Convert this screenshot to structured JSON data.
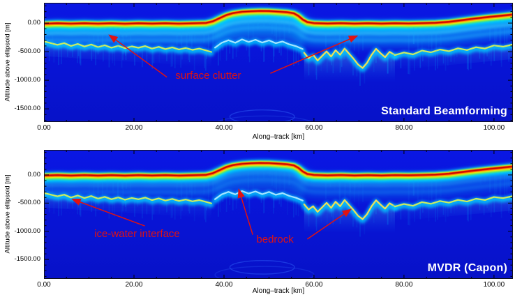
{
  "colors": {
    "annotation": "#e01212",
    "panel_title": "#ffffff",
    "echogram_background": "#0a15dc",
    "axis": "#000000"
  },
  "chart_data": {
    "type": "heatmap",
    "subtype": "radar-echogram",
    "colormap": "jet",
    "annotation_color": "#e01212",
    "profiles": {
      "surface": [
        [
          -0.5,
          -12
        ],
        [
          3,
          -2
        ],
        [
          6,
          -10
        ],
        [
          9,
          -2
        ],
        [
          12,
          -10
        ],
        [
          15,
          -3
        ],
        [
          18,
          -11
        ],
        [
          21,
          -2
        ],
        [
          24,
          -9
        ],
        [
          27,
          -3
        ],
        [
          30,
          -10
        ],
        [
          33,
          -4
        ],
        [
          36,
          2
        ],
        [
          37.5,
          30
        ],
        [
          39,
          85
        ],
        [
          40.5,
          140
        ],
        [
          42,
          175
        ],
        [
          44,
          198
        ],
        [
          46,
          208
        ],
        [
          48,
          214
        ],
        [
          50,
          211
        ],
        [
          52,
          201
        ],
        [
          54,
          190
        ],
        [
          55.5,
          172
        ],
        [
          56.5,
          128
        ],
        [
          57.5,
          62
        ],
        [
          58.5,
          18
        ],
        [
          60,
          0
        ],
        [
          63,
          -7
        ],
        [
          66,
          -1
        ],
        [
          69,
          -9
        ],
        [
          72,
          -3
        ],
        [
          75,
          -9
        ],
        [
          78,
          -2
        ],
        [
          81,
          -6
        ],
        [
          84,
          -1
        ],
        [
          87,
          5
        ],
        [
          90,
          22
        ],
        [
          93,
          52
        ],
        [
          96,
          82
        ],
        [
          99,
          108
        ],
        [
          102,
          132
        ],
        [
          104.5,
          152
        ]
      ],
      "layers": [
        {
          "name": "ice-water interface (left)",
          "color": "#d8f055",
          "fill_depth": 260,
          "fill_opacity": 0.3,
          "points": [
            [
              0,
              -320
            ],
            [
              1.5,
              -350
            ],
            [
              3,
              -380
            ],
            [
              4.5,
              -350
            ],
            [
              6,
              -400
            ],
            [
              7.5,
              -365
            ],
            [
              9,
              -410
            ],
            [
              10.5,
              -375
            ],
            [
              12,
              -420
            ],
            [
              13.5,
              -388
            ],
            [
              15,
              -432
            ],
            [
              16.5,
              -398
            ],
            [
              18,
              -440
            ],
            [
              19.5,
              -408
            ],
            [
              21,
              -432
            ],
            [
              22.5,
              -402
            ],
            [
              24,
              -446
            ],
            [
              25.5,
              -416
            ],
            [
              27,
              -455
            ],
            [
              28.5,
              -425
            ],
            [
              30,
              -462
            ],
            [
              31.5,
              -436
            ],
            [
              33,
              -468
            ],
            [
              34.5,
              -446
            ],
            [
              36,
              -478
            ],
            [
              37.2,
              -505
            ]
          ]
        },
        {
          "name": "internal boundary under dome",
          "color": "#aee8ff",
          "fill_depth": 0,
          "fill_opacity": 0,
          "points": [
            [
              38,
              -430
            ],
            [
              39.5,
              -345
            ],
            [
              41,
              -300
            ],
            [
              42.5,
              -345
            ],
            [
              44,
              -285
            ],
            [
              45.5,
              -330
            ],
            [
              47,
              -292
            ],
            [
              48.5,
              -342
            ],
            [
              50,
              -302
            ],
            [
              51.5,
              -352
            ],
            [
              53,
              -322
            ],
            [
              54.5,
              -372
            ],
            [
              56,
              -405
            ],
            [
              57.5,
              -455
            ]
          ]
        },
        {
          "name": "bedrock ridge",
          "color": "#ffe44a",
          "fill_depth": 480,
          "fill_opacity": 0.5,
          "points": [
            [
              57.8,
              -520
            ],
            [
              58.8,
              -615
            ],
            [
              59.8,
              -555
            ],
            [
              60.8,
              -655
            ],
            [
              61.8,
              -575
            ],
            [
              62.8,
              -495
            ],
            [
              63.8,
              -585
            ],
            [
              64.8,
              -475
            ],
            [
              65.8,
              -555
            ],
            [
              66.8,
              -445
            ],
            [
              67.8,
              -535
            ],
            [
              68.8,
              -625
            ],
            [
              69.8,
              -725
            ],
            [
              70.8,
              -785
            ],
            [
              71.8,
              -695
            ],
            [
              72.8,
              -555
            ],
            [
              73.8,
              -450
            ],
            [
              74.8,
              -528
            ],
            [
              75.8,
              -598
            ],
            [
              76.8,
              -502
            ],
            [
              78,
              -560
            ]
          ]
        },
        {
          "name": "ice-water interface (right)",
          "color": "#d8f055",
          "fill_depth": 260,
          "fill_opacity": 0.35,
          "points": [
            [
              78,
              -560
            ],
            [
              80,
              -515
            ],
            [
              82,
              -548
            ],
            [
              84,
              -482
            ],
            [
              86,
              -512
            ],
            [
              88,
              -462
            ],
            [
              90,
              -492
            ],
            [
              92,
              -442
            ],
            [
              94,
              -472
            ],
            [
              96,
              -422
            ],
            [
              98,
              -445
            ],
            [
              100,
              -392
            ],
            [
              102,
              -412
            ],
            [
              104.5,
              -370
            ]
          ]
        }
      ]
    },
    "panels": [
      {
        "id": "standard-beamforming",
        "title": "Standard Beamforming",
        "xlabel": "Along–track [km]",
        "ylabel": "Altitude above ellipsoid [m]",
        "xlim": [
          0,
          104.2
        ],
        "ylim": [
          355,
          -1731
        ],
        "clutter": 1.0,
        "xticks": [
          0,
          20,
          40,
          60,
          80,
          100
        ],
        "xtick_labels": [
          "0.00",
          "20.00",
          "40.00",
          "60.00",
          "80.00",
          "100.00"
        ],
        "yticks": [
          0,
          -500,
          -1000,
          -1500
        ],
        "ytick_labels": [
          "0.00",
          "-500.00",
          "-1000.00",
          "-1500.00"
        ],
        "annotations": [
          {
            "text": "surface clutter",
            "at": [
              29.2,
              -830
            ],
            "arrows": [
              {
                "from": [
                  27.3,
                  -945
                ],
                "to": [
                  14.5,
                  -210
                ]
              },
              {
                "from": [
                  50.3,
                  -880
                ],
                "to": [
                  69.6,
                  -225
                ]
              }
            ]
          }
        ]
      },
      {
        "id": "mvdr-capon",
        "title": "MVDR (Capon)",
        "xlabel": "Along–track [km]",
        "ylabel": "Altitude above ellipsoid [m]",
        "xlim": [
          0,
          104.2
        ],
        "ylim": [
          445,
          -1845
        ],
        "clutter": 0.4,
        "xticks": [
          0,
          20,
          40,
          60,
          80,
          100
        ],
        "xtick_labels": [
          "0.00",
          "20.00",
          "40.00",
          "60.00",
          "80.00",
          "100.00"
        ],
        "yticks": [
          0,
          -500,
          -1000,
          -1500
        ],
        "ytick_labels": [
          "0.00",
          "-500.00",
          "-1000.00",
          "-1500.00"
        ],
        "annotations": [
          {
            "text": "ice-water interface",
            "at": [
              11.2,
              -955
            ],
            "arrows": [
              {
                "from": [
                  22.4,
                  -905
                ],
                "to": [
                  6.3,
                  -430
                ]
              }
            ]
          },
          {
            "text": "bedrock",
            "at": [
              47.2,
              -1055
            ],
            "arrows": [
              {
                "from": [
                  46.4,
                  -1060
                ],
                "to": [
                  43.3,
                  -255
                ]
              },
              {
                "from": [
                  58.5,
                  -1140
                ],
                "to": [
                  68.2,
                  -610
                ]
              }
            ]
          }
        ]
      }
    ]
  }
}
